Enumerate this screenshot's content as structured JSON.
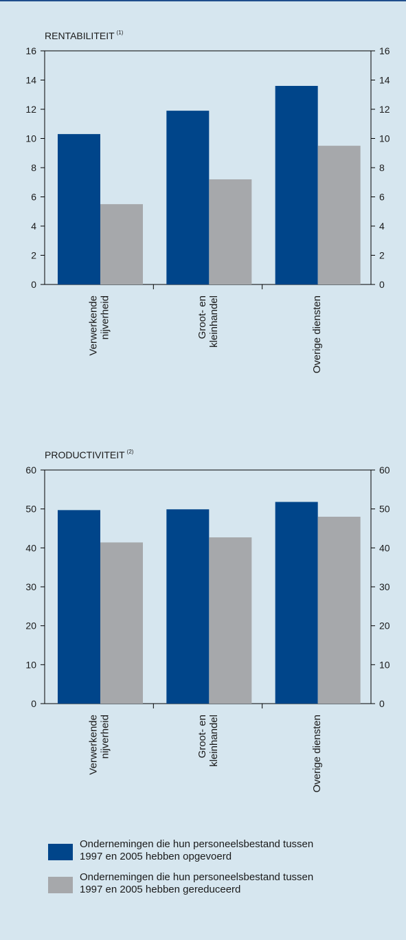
{
  "colors": {
    "series_1": "#00458a",
    "series_2": "#a6a8ab"
  },
  "chart_data": [
    {
      "type": "bar",
      "title": "RENTABILITEIT",
      "title_note": "(1)",
      "categories": [
        [
          "Verwerkende",
          "nijverheid"
        ],
        [
          "Groot- en",
          "kleinhandel"
        ],
        [
          "Overige diensten"
        ]
      ],
      "series": [
        {
          "values": [
            10.3,
            11.9,
            13.6
          ]
        },
        {
          "values": [
            5.5,
            7.2,
            9.5
          ]
        }
      ],
      "ylim": [
        0,
        16
      ],
      "yticks": [
        0,
        2,
        4,
        6,
        8,
        10,
        12,
        14,
        16
      ]
    },
    {
      "type": "bar",
      "title": "PRODUCTIVITEIT",
      "title_note": "(2)",
      "categories": [
        [
          "Verwerkende",
          "nijverheid"
        ],
        [
          "Groot- en",
          "kleinhandel"
        ],
        [
          "Overige diensten"
        ]
      ],
      "series": [
        {
          "values": [
            49.7,
            49.9,
            51.8
          ]
        },
        {
          "values": [
            41.4,
            42.7,
            48.0
          ]
        }
      ],
      "ylim": [
        0,
        60
      ],
      "yticks": [
        0,
        10,
        20,
        30,
        40,
        50,
        60
      ]
    }
  ],
  "legend": [
    {
      "label_line1": "Ondernemingen die hun personeelsbestand tussen",
      "label_line2": "1997 en 2005 hebben opgevoerd"
    },
    {
      "label_line1": "Ondernemingen die hun personeelsbestand tussen",
      "label_line2": "1997 en 2005 hebben gereduceerd"
    }
  ]
}
